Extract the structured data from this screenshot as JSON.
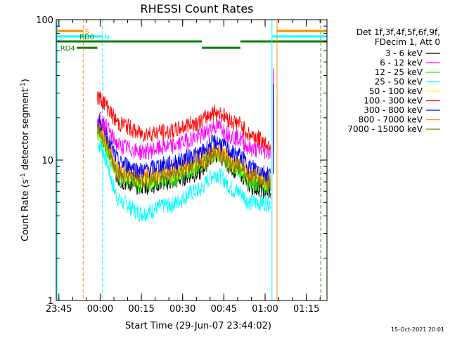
{
  "chart_data": {
    "type": "line",
    "title": "RHESSI Count Rates",
    "xlabel": "Start Time (29-Jun-07 23:44:02)",
    "ylabel_main": "Count Rate (s",
    "ylabel_sup1": "-1",
    "ylabel_mid": " detector segment",
    "ylabel_sup2": "-1",
    "ylabel_end": ")",
    "y_scale": "log",
    "ylim": [
      1,
      100
    ],
    "xlim": [
      "23:44:02",
      "01:22:30"
    ],
    "x_ticks": [
      "23:45",
      "00:00",
      "00:15",
      "00:30",
      "00:45",
      "01:00",
      "01:15"
    ],
    "y_ticks": [
      "1",
      "10",
      "100"
    ],
    "legend_header": [
      "Det 1f,3f,4f,5f,6f,9f,",
      "FDecim 1, Att 0"
    ],
    "series": [
      {
        "name": "3 - 6 keV",
        "color": "#000000",
        "times": [
          "23:59",
          "00:08",
          "00:15",
          "00:25",
          "00:35",
          "00:42",
          "00:50",
          "00:55",
          "01:02"
        ],
        "values": [
          18,
          7,
          6.5,
          7,
          8,
          11,
          8.5,
          6.5,
          6
        ]
      },
      {
        "name": "6 - 12 keV",
        "color": "#ff00ff",
        "times": [
          "23:59",
          "00:08",
          "00:15",
          "00:25",
          "00:35",
          "00:42",
          "00:50",
          "00:55",
          "01:02"
        ],
        "values": [
          20,
          12.5,
          11.5,
          12.5,
          14.5,
          17.5,
          14.5,
          12,
          11.5
        ]
      },
      {
        "name": "12 - 25 keV",
        "color": "#00ff00",
        "times": [
          "23:59",
          "00:08",
          "00:15",
          "00:25",
          "00:35",
          "00:42",
          "00:50",
          "00:55",
          "01:02"
        ],
        "values": [
          15,
          7.5,
          6.8,
          7.5,
          8.8,
          11,
          8.8,
          7,
          6.5
        ]
      },
      {
        "name": "25 - 50 keV",
        "color": "#00ffff",
        "times": [
          "23:59",
          "00:08",
          "00:15",
          "00:25",
          "00:35",
          "00:42",
          "00:50",
          "00:55",
          "01:02"
        ],
        "values": [
          13,
          5,
          4.2,
          4.8,
          6,
          8,
          6,
          5,
          5
        ]
      },
      {
        "name": "50 - 100 keV",
        "color": "#ffff00",
        "times": [
          "23:59",
          "00:08",
          "00:15",
          "00:25",
          "00:35",
          "00:42",
          "00:50",
          "00:55",
          "01:02"
        ],
        "values": [
          16,
          8,
          7.2,
          8,
          9.4,
          11.5,
          9.4,
          7.6,
          7
        ]
      },
      {
        "name": "100 - 300 keV",
        "color": "#ff0000",
        "times": [
          "23:59",
          "00:08",
          "00:15",
          "00:25",
          "00:35",
          "00:42",
          "00:50",
          "00:55",
          "01:02"
        ],
        "values": [
          28,
          18,
          15.5,
          16,
          18.5,
          22,
          18.5,
          15,
          13
        ]
      },
      {
        "name": "300 - 800 keV",
        "color": "#0000ff",
        "times": [
          "23:59",
          "00:08",
          "00:15",
          "00:25",
          "00:35",
          "00:42",
          "00:50",
          "00:55",
          "01:02"
        ],
        "values": [
          19,
          9.5,
          8.5,
          9.5,
          11,
          13.5,
          11,
          9,
          8
        ]
      },
      {
        "name": "800 - 7000 keV",
        "color": "#ff8c00",
        "times": [
          "23:59",
          "00:08",
          "00:15",
          "00:25",
          "00:35",
          "00:42",
          "00:50",
          "00:55",
          "01:02"
        ],
        "values": [
          17,
          8.5,
          7.8,
          8.5,
          10,
          12,
          10,
          8,
          7.5
        ]
      },
      {
        "name": "7000 - 15000 keV",
        "color": "#8b7500",
        "times": [
          "23:59",
          "00:08",
          "00:15",
          "00:25",
          "00:35",
          "00:42",
          "00:50",
          "00:55",
          "01:02"
        ],
        "values": [
          16,
          7.8,
          7.2,
          7.8,
          9,
          11,
          9,
          7.5,
          7
        ]
      }
    ],
    "flags": [
      {
        "label": "S",
        "color": "#ff8c00",
        "level": 83
      },
      {
        "label": "N",
        "color": "#00ffff",
        "level": 76
      },
      {
        "label": "RD0",
        "color": "#008000",
        "level": 70
      },
      {
        "label": "RD4",
        "color": "#008000",
        "level": 63
      }
    ],
    "vertical_markers": [
      {
        "time": "23:44:20",
        "color": "#00ffff",
        "style": "solid"
      },
      {
        "time": "23:53:50",
        "color": "#ff8c00",
        "style": "dashed"
      },
      {
        "time": "00:00:50",
        "color": "#00ffff",
        "style": "dashed"
      },
      {
        "time": "01:02:30",
        "color": "#00ffff",
        "style": "solid"
      },
      {
        "time": "01:04:20",
        "color": "#ff8c00",
        "style": "solid"
      },
      {
        "time": "01:20:10",
        "color": "#00ffff",
        "style": "dashed"
      },
      {
        "time": "01:20:20",
        "color": "#ff8c00",
        "style": "dashed"
      }
    ],
    "footer_date": "15-Oct-2021 20:01"
  }
}
